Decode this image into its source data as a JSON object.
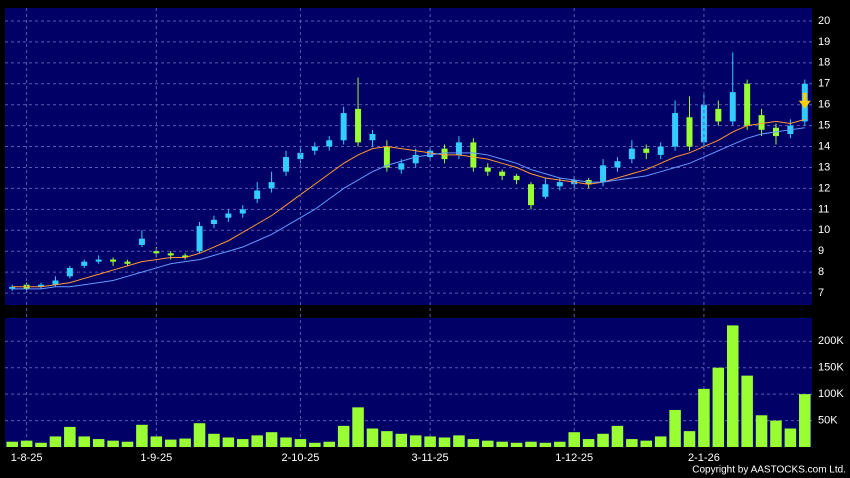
{
  "chart_data": [
    {
      "type": "candlestick",
      "open": [
        7.2,
        7.4,
        7.3,
        7.4,
        7.8,
        8.3,
        8.5,
        8.6,
        8.5,
        9.3,
        9.0,
        8.9,
        8.8,
        9.0,
        10.3,
        10.6,
        10.8,
        11.5,
        12.0,
        12.8,
        13.4,
        13.8,
        14.0,
        14.3,
        15.8,
        14.3,
        14.0,
        12.9,
        13.2,
        13.5,
        13.9,
        13.6,
        14.2,
        13.0,
        12.8,
        12.6,
        12.2,
        11.6,
        12.1,
        12.2,
        12.4,
        12.3,
        13.0,
        13.4,
        13.9,
        13.6,
        14.0,
        15.4,
        14.2,
        15.8,
        15.2,
        17.0,
        15.5,
        14.9,
        14.6,
        15.2
      ],
      "high": [
        7.4,
        7.5,
        7.5,
        7.8,
        8.3,
        8.6,
        8.8,
        8.7,
        8.6,
        10.0,
        9.2,
        9.0,
        8.9,
        10.4,
        10.7,
        11.0,
        11.2,
        12.3,
        12.8,
        13.8,
        14.0,
        14.2,
        14.5,
        15.9,
        17.3,
        14.8,
        14.3,
        13.4,
        13.9,
        14.0,
        14.1,
        14.5,
        14.4,
        13.2,
        12.9,
        12.7,
        12.3,
        12.5,
        12.5,
        12.6,
        12.5,
        13.4,
        13.5,
        14.3,
        14.1,
        14.2,
        16.2,
        16.4,
        16.5,
        16.2,
        18.5,
        17.2,
        15.8,
        15.1,
        15.3,
        17.2
      ],
      "low": [
        7.1,
        7.0,
        7.2,
        7.3,
        7.7,
        8.2,
        8.4,
        8.3,
        8.3,
        9.2,
        8.7,
        8.6,
        8.6,
        8.9,
        10.1,
        10.4,
        10.6,
        11.3,
        11.8,
        12.6,
        13.2,
        13.6,
        13.8,
        14.1,
        14.0,
        14.0,
        12.8,
        12.7,
        13.0,
        13.3,
        13.2,
        13.4,
        12.8,
        12.6,
        12.4,
        12.2,
        11.0,
        11.5,
        11.9,
        12.0,
        12.0,
        12.1,
        12.8,
        13.2,
        13.4,
        13.4,
        13.8,
        13.8,
        14.0,
        15.0,
        15.0,
        14.8,
        14.5,
        14.1,
        14.4,
        15.0
      ],
      "close": [
        7.3,
        7.2,
        7.4,
        7.6,
        8.2,
        8.5,
        8.6,
        8.5,
        8.4,
        9.6,
        8.9,
        8.8,
        8.7,
        10.2,
        10.5,
        10.8,
        11.0,
        11.9,
        12.3,
        13.5,
        13.7,
        14.0,
        14.3,
        15.6,
        14.2,
        14.6,
        13.0,
        13.2,
        13.6,
        13.8,
        13.4,
        14.2,
        13.0,
        12.8,
        12.6,
        12.4,
        11.2,
        12.2,
        12.3,
        12.4,
        12.2,
        13.1,
        13.3,
        13.9,
        13.7,
        14.0,
        15.6,
        14.0,
        16.0,
        15.2,
        16.6,
        15.0,
        14.8,
        14.5,
        15.0,
        17.0
      ],
      "up_color": "#33ccff",
      "down_color": "#99ff33",
      "series": [
        {
          "color": "#ff9933",
          "values": [
            7.3,
            7.3,
            7.3,
            7.4,
            7.5,
            7.7,
            7.9,
            8.1,
            8.3,
            8.5,
            8.6,
            8.7,
            8.7,
            8.9,
            9.2,
            9.5,
            9.9,
            10.3,
            10.7,
            11.2,
            11.7,
            12.2,
            12.7,
            13.2,
            13.6,
            13.9,
            14.0,
            13.9,
            13.8,
            13.7,
            13.6,
            13.6,
            13.5,
            13.4,
            13.2,
            13.0,
            12.7,
            12.5,
            12.4,
            12.3,
            12.2,
            12.3,
            12.5,
            12.7,
            12.9,
            13.2,
            13.5,
            13.7,
            14.0,
            14.3,
            14.7,
            15.0,
            15.1,
            15.2,
            15.1,
            15.3
          ]
        },
        {
          "color": "#6699ff",
          "values": [
            7.2,
            7.2,
            7.2,
            7.3,
            7.3,
            7.4,
            7.5,
            7.6,
            7.8,
            8.0,
            8.2,
            8.4,
            8.5,
            8.6,
            8.8,
            9.0,
            9.2,
            9.5,
            9.8,
            10.2,
            10.6,
            11.0,
            11.5,
            12.0,
            12.4,
            12.8,
            13.1,
            13.3,
            13.5,
            13.6,
            13.7,
            13.7,
            13.7,
            13.6,
            13.4,
            13.2,
            12.9,
            12.7,
            12.5,
            12.4,
            12.3,
            12.3,
            12.4,
            12.5,
            12.6,
            12.8,
            13.0,
            13.2,
            13.5,
            13.8,
            14.1,
            14.4,
            14.6,
            14.7,
            14.8,
            14.9
          ]
        }
      ],
      "ylim": [
        6.43,
        20.62
      ],
      "yticks": [
        7,
        8,
        9,
        10,
        11,
        12,
        13,
        14,
        15,
        16,
        17,
        18,
        19,
        20
      ],
      "grid": true
    },
    {
      "type": "bar",
      "categories": [
        null,
        "1-8-25",
        null,
        null,
        null,
        null,
        null,
        null,
        null,
        null,
        "1-9-25",
        null,
        null,
        null,
        null,
        null,
        null,
        null,
        null,
        null,
        "2-10-25",
        null,
        null,
        null,
        null,
        null,
        null,
        null,
        null,
        "3-11-25",
        null,
        null,
        null,
        null,
        null,
        null,
        null,
        null,
        null,
        "1-12-25",
        null,
        null,
        null,
        null,
        null,
        null,
        null,
        null,
        "2-1-26",
        null,
        null,
        null,
        null,
        null,
        null,
        null
      ],
      "values": [
        10000,
        12000,
        8000,
        20000,
        38000,
        20000,
        15000,
        12000,
        10000,
        42000,
        20000,
        14000,
        16000,
        45000,
        25000,
        18000,
        15000,
        22000,
        28000,
        18000,
        15000,
        8000,
        10000,
        40000,
        75000,
        35000,
        30000,
        25000,
        22000,
        20000,
        18000,
        22000,
        15000,
        12000,
        10000,
        8000,
        10000,
        8000,
        10000,
        28000,
        15000,
        25000,
        40000,
        15000,
        12000,
        20000,
        70000,
        30000,
        110000,
        150000,
        230000,
        135000,
        60000,
        50000,
        35000,
        100000
      ],
      "color": "#99ff33",
      "ylim": [
        0,
        244000
      ],
      "yticks": [
        {
          "value": 50000,
          "label": "50K"
        },
        {
          "value": 100000,
          "label": "100K"
        },
        {
          "value": 150000,
          "label": "150K"
        },
        {
          "value": 200000,
          "label": "200K"
        }
      ],
      "grid": true
    }
  ],
  "footer": "Copyright by AASTOCKS.com Ltd."
}
